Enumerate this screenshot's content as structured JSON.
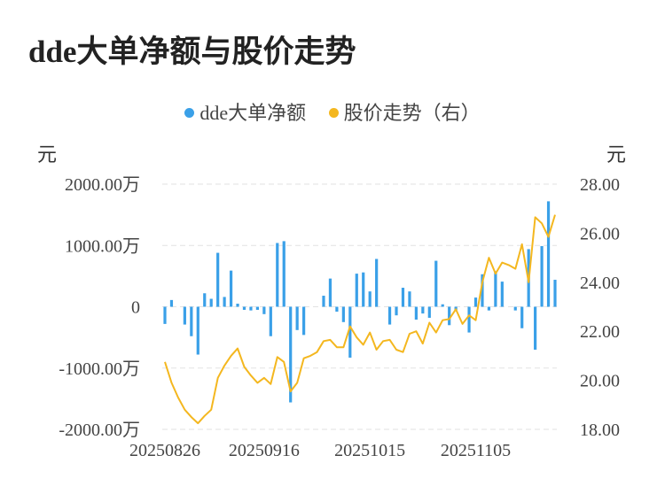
{
  "title": "dde大单净额与股价走势",
  "legend": {
    "left_series": "dde大单净额",
    "right_series": "股价走势（右）"
  },
  "units": {
    "left": "元",
    "right": "元"
  },
  "colors": {
    "bar": "#3aa0e8",
    "line": "#f4b71f",
    "grid": "#e2e2e2"
  },
  "chart_data": {
    "type": "bar+line",
    "title": "dde大单净额与股价走势",
    "left_axis": {
      "unit": "元",
      "ylim": [
        -2000,
        2000
      ],
      "tick_labels": [
        "2000.00万",
        "1000.00万",
        "0",
        "-1000.00万",
        "-2000.00万"
      ]
    },
    "right_axis": {
      "unit": "元",
      "ylim": [
        18,
        28
      ],
      "tick_labels": [
        "28.00",
        "26.00",
        "24.00",
        "22.00",
        "20.00",
        "18.00"
      ]
    },
    "x_tick_labels": [
      "20250826",
      "20250916",
      "20251015",
      "20251105"
    ],
    "grid": true,
    "legend_position": "top",
    "series": [
      {
        "name": "dde大单净额",
        "type": "bar",
        "axis": "left",
        "values": [
          -280,
          110,
          0,
          -290,
          -480,
          -780,
          220,
          130,
          880,
          160,
          590,
          50,
          -50,
          -60,
          -50,
          -120,
          -480,
          1040,
          1070,
          -1560,
          -380,
          -460,
          0,
          0,
          180,
          460,
          -80,
          -250,
          -830,
          540,
          560,
          250,
          780,
          0,
          -290,
          -140,
          310,
          250,
          -210,
          -110,
          -180,
          750,
          40,
          -300,
          -60,
          0,
          -420,
          150,
          530,
          -60,
          580,
          410,
          0,
          -60,
          -350,
          940,
          -700,
          990,
          1720,
          440
        ]
      },
      {
        "name": "股价走势（右）",
        "type": "line",
        "axis": "right",
        "values": [
          20.75,
          19.9,
          19.3,
          18.8,
          18.5,
          18.25,
          18.55,
          18.8,
          20.1,
          20.6,
          21.0,
          21.3,
          20.55,
          20.2,
          19.9,
          20.1,
          19.85,
          20.95,
          20.75,
          19.55,
          19.9,
          20.9,
          21.0,
          21.15,
          21.6,
          21.65,
          21.35,
          21.35,
          22.2,
          21.75,
          21.45,
          21.95,
          21.25,
          21.6,
          21.65,
          21.25,
          21.15,
          21.9,
          22.0,
          21.5,
          22.35,
          21.95,
          22.45,
          22.5,
          22.9,
          22.3,
          22.65,
          22.45,
          24.0,
          25.0,
          24.35,
          24.8,
          24.7,
          24.55,
          25.55,
          24.0,
          26.65,
          26.4,
          25.85,
          26.75
        ]
      }
    ]
  }
}
